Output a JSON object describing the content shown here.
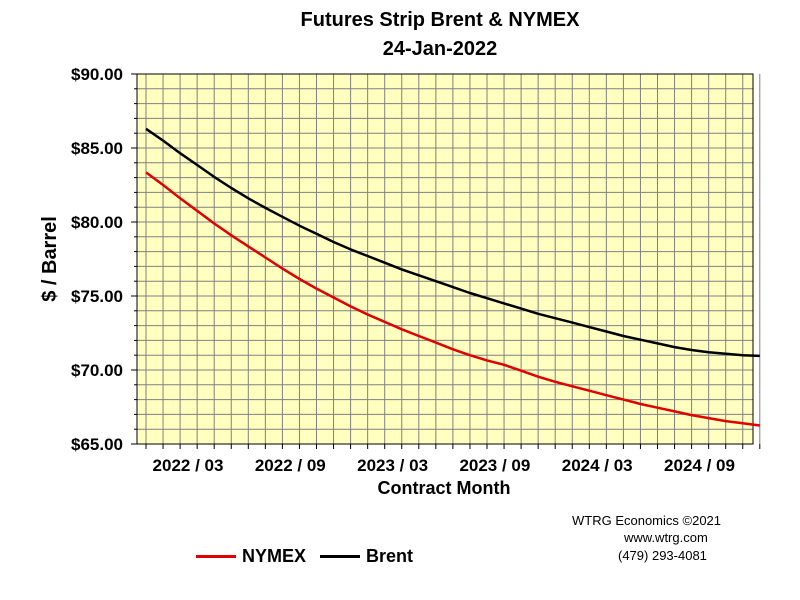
{
  "chart_data": {
    "type": "line",
    "title": "Futures Strip Brent & NYMEX",
    "subtitle": "24-Jan-2022",
    "xlabel": "Contract Month",
    "ylabel": "$ / Barrel",
    "ylim": [
      65,
      90
    ],
    "yticks": [
      "$65.00",
      "$70.00",
      "$75.00",
      "$80.00",
      "$85.00",
      "$90.00"
    ],
    "x_tick_labels": [
      {
        "index": 0,
        "label": "2022 / 03"
      },
      {
        "index": 6,
        "label": "2022 / 09"
      },
      {
        "index": 12,
        "label": "2023 / 03"
      },
      {
        "index": 18,
        "label": "2023 / 09"
      },
      {
        "index": 24,
        "label": "2024 / 03"
      },
      {
        "index": 30,
        "label": "2024 / 09"
      }
    ],
    "x": [
      "2022/03",
      "2022/04",
      "2022/05",
      "2022/06",
      "2022/07",
      "2022/08",
      "2022/09",
      "2022/10",
      "2022/11",
      "2022/12",
      "2023/01",
      "2023/02",
      "2023/03",
      "2023/04",
      "2023/05",
      "2023/06",
      "2023/07",
      "2023/08",
      "2023/09",
      "2023/10",
      "2023/11",
      "2023/12",
      "2024/01",
      "2024/02",
      "2024/03",
      "2024/04",
      "2024/05",
      "2024/06",
      "2024/07",
      "2024/08",
      "2024/09",
      "2024/10",
      "2024/11",
      "2024/12",
      "2025/01",
      "2025/02",
      "2025/03"
    ],
    "grid": true,
    "background_color": "#ffffc0",
    "legend_placement": "bottom-left",
    "series": [
      {
        "name": "NYMEX",
        "color": "#e00000",
        "values": [
          83.35,
          82.5,
          81.6,
          80.75,
          79.9,
          79.1,
          78.35,
          77.6,
          76.85,
          76.15,
          75.5,
          74.9,
          74.3,
          73.75,
          73.25,
          72.75,
          72.3,
          71.85,
          71.4,
          71.0,
          70.65,
          70.35,
          69.95,
          69.55,
          69.2,
          68.9,
          68.6,
          68.3,
          68.0,
          67.7,
          67.45,
          67.2,
          66.95,
          66.75,
          66.55,
          66.4,
          66.25
        ]
      },
      {
        "name": "Brent",
        "color": "#000000",
        "values": [
          86.3,
          85.5,
          84.65,
          83.85,
          83.05,
          82.3,
          81.6,
          80.95,
          80.35,
          79.75,
          79.2,
          78.65,
          78.15,
          77.7,
          77.25,
          76.8,
          76.4,
          76.0,
          75.6,
          75.2,
          74.85,
          74.5,
          74.15,
          73.8,
          73.5,
          73.2,
          72.9,
          72.6,
          72.3,
          72.05,
          71.8,
          71.55,
          71.35,
          71.2,
          71.1,
          71.0,
          70.95
        ]
      }
    ]
  },
  "credits": {
    "line1": "WTRG Economics ©2021",
    "line2": "www.wtrg.com",
    "line3": "(479) 293-4081"
  }
}
